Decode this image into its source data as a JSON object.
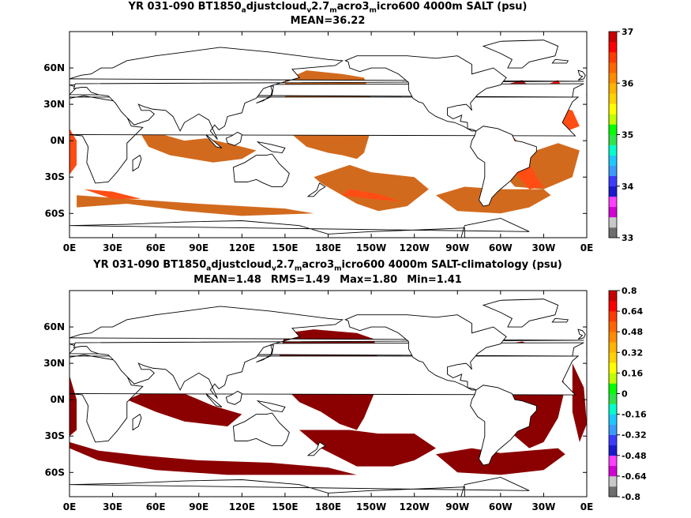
{
  "panels": [
    {
      "title_parts": [
        {
          "t": "YR 031-090 BT1850"
        },
        {
          "t": "a",
          "sub": true
        },
        {
          "t": "djustcloud"
        },
        {
          "t": "v",
          "sub": true
        },
        {
          "t": "2.7"
        },
        {
          "t": "m",
          "sub": true
        },
        {
          "t": "acro3"
        },
        {
          "t": "m",
          "sub": true
        },
        {
          "t": "icro600 4000m SALT (psu)"
        }
      ],
      "stats": [
        "MEAN=36.22"
      ]
    },
    {
      "title_parts": [
        {
          "t": "YR 031-090 BT1850"
        },
        {
          "t": "a",
          "sub": true
        },
        {
          "t": "djustcloud"
        },
        {
          "t": "v",
          "sub": true
        },
        {
          "t": "2.7"
        },
        {
          "t": "m",
          "sub": true
        },
        {
          "t": "acro3"
        },
        {
          "t": "m",
          "sub": true
        },
        {
          "t": "icro600 4000m SALT-climatology (psu)"
        }
      ],
      "stats": [
        "MEAN=1.48",
        "RMS=1.49",
        "Max=1.80",
        "Min=1.41"
      ]
    }
  ],
  "chart_data": [
    {
      "type": "heatmap",
      "variable": "4000m SALT (psu)",
      "mean": 36.22,
      "x_ticks": [
        "0E",
        "30E",
        "60E",
        "90E",
        "120E",
        "150E",
        "180E",
        "150W",
        "120W",
        "90W",
        "60W",
        "30W",
        "0E"
      ],
      "y_ticks": [
        "60N",
        "30N",
        "0N",
        "30S",
        "60S"
      ],
      "xlim": [
        0,
        360
      ],
      "ylim": [
        -80,
        90
      ],
      "colorbar": {
        "ticks": [
          "37",
          "36",
          "35",
          "34",
          "33"
        ],
        "range": [
          33,
          37
        ],
        "colors": [
          "#6e6e6e",
          "#c8c8c8",
          "#d200d2",
          "#ff40ff",
          "#1a1acc",
          "#3c3cff",
          "#3c9bff",
          "#1ec8ff",
          "#00ffcc",
          "#2fe34c",
          "#00ff00",
          "#bfff00",
          "#ffff00",
          "#ffd200",
          "#ffb400",
          "#ff8c00",
          "#ff6600",
          "#ff3c00",
          "#ff0000",
          "#c80000"
        ]
      },
      "field_colors": {
        "dominant": "#d26a1e",
        "higher": "#ff4d14",
        "highest": "#ff0f0f",
        "max": "#b41414"
      }
    },
    {
      "type": "heatmap",
      "variable": "4000m SALT-climatology (psu)",
      "mean": 1.48,
      "rms": 1.49,
      "max": 1.8,
      "min": 1.41,
      "x_ticks": [
        "0E",
        "30E",
        "60E",
        "90E",
        "120E",
        "150E",
        "180E",
        "150W",
        "120W",
        "90W",
        "60W",
        "30W",
        "0E"
      ],
      "y_ticks": [
        "60N",
        "30N",
        "0N",
        "30S",
        "60S"
      ],
      "xlim": [
        0,
        360
      ],
      "ylim": [
        -80,
        90
      ],
      "colorbar": {
        "ticks": [
          "0.8",
          "0.64",
          "0.48",
          "0.32",
          "0.16",
          "0",
          "-0.16",
          "-0.32",
          "-0.48",
          "-0.64",
          "-0.8"
        ],
        "range": [
          -0.8,
          0.8
        ],
        "colors": [
          "#6e6e6e",
          "#c8c8c8",
          "#d200d2",
          "#ff40ff",
          "#1a1acc",
          "#3c3cff",
          "#3c9bff",
          "#1ec8ff",
          "#00ffcc",
          "#2fe34c",
          "#00ff00",
          "#bfff00",
          "#ffff00",
          "#ffd200",
          "#ffb400",
          "#ff8c00",
          "#ff6600",
          "#ff3c00",
          "#ff0000",
          "#c80000"
        ]
      },
      "field_colors": {
        "dominant": "#8b0000"
      }
    }
  ]
}
